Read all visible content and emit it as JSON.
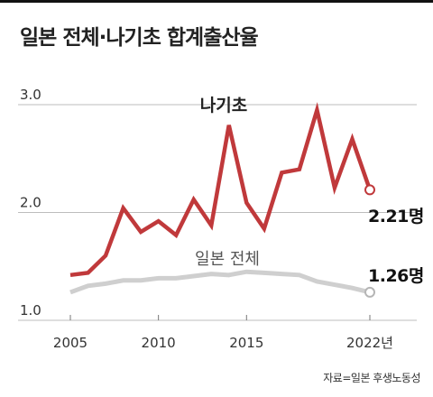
{
  "title": "일본 전체·나기초 합계출산율",
  "source": "자료=일본 후생노동성",
  "chart_data": {
    "type": "line",
    "title": "일본 전체·나기초 합계출산율",
    "x": [
      2005,
      2006,
      2007,
      2008,
      2009,
      2010,
      2011,
      2012,
      2013,
      2014,
      2015,
      2016,
      2017,
      2018,
      2019,
      2020,
      2021,
      2022
    ],
    "x_tick_labels": [
      "2005",
      "2010",
      "2015",
      "2022년"
    ],
    "x_ticks": [
      2005,
      2010,
      2015,
      2022
    ],
    "y_tick_labels": [
      "1.0",
      "2.0",
      "3.0"
    ],
    "y_ticks": [
      1.0,
      2.0,
      3.0
    ],
    "ylim": [
      1.0,
      3.0
    ],
    "xlim": [
      2005,
      2022
    ],
    "grid": "horizontal",
    "series": [
      {
        "name": "나기초",
        "color": "#c0393b",
        "values": [
          1.42,
          1.44,
          1.6,
          2.04,
          1.82,
          1.92,
          1.79,
          2.12,
          1.88,
          2.81,
          2.09,
          1.85,
          2.37,
          2.4,
          2.95,
          2.23,
          2.68,
          2.21
        ],
        "end_label": "2.21명"
      },
      {
        "name": "일본 전체",
        "color": "#cfcfcf",
        "values": [
          1.26,
          1.32,
          1.34,
          1.37,
          1.37,
          1.39,
          1.39,
          1.41,
          1.43,
          1.42,
          1.45,
          1.44,
          1.43,
          1.42,
          1.36,
          1.33,
          1.3,
          1.26
        ],
        "end_label": "1.26명"
      }
    ]
  }
}
